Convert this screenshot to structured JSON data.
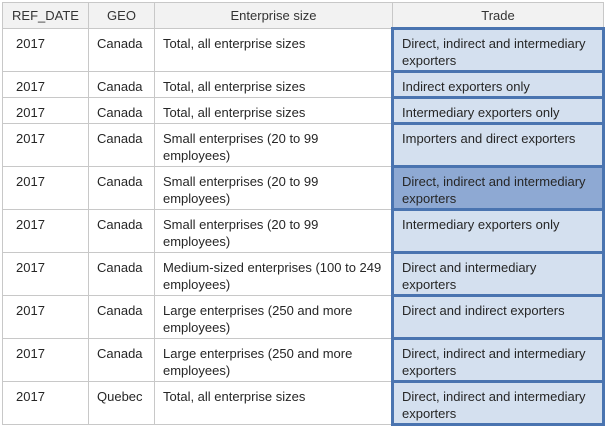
{
  "columns": {
    "ref_date": "REF_DATE",
    "geo": "GEO",
    "size": "Enterprise size",
    "trade": "Trade"
  },
  "rows": [
    {
      "ref_date": "2017",
      "geo": "Canada",
      "size": "Total, all enterprise sizes",
      "trade": "Direct, indirect and intermediary exporters"
    },
    {
      "ref_date": "2017",
      "geo": "Canada",
      "size": "Total, all enterprise sizes",
      "trade": "Indirect exporters only"
    },
    {
      "ref_date": "2017",
      "geo": "Canada",
      "size": "Total, all enterprise sizes",
      "trade": "Intermediary exporters only"
    },
    {
      "ref_date": "2017",
      "geo": "Canada",
      "size": "Small enterprises (20 to 99 employees)",
      "trade": "Importers and direct exporters"
    },
    {
      "ref_date": "2017",
      "geo": "Canada",
      "size": "Small enterprises (20 to 99 employees)",
      "trade": "Direct, indirect and intermediary exporters"
    },
    {
      "ref_date": "2017",
      "geo": "Canada",
      "size": "Small enterprises (20 to 99 employees)",
      "trade": "Intermediary exporters only"
    },
    {
      "ref_date": "2017",
      "geo": "Canada",
      "size": "Medium-sized enterprises (100 to 249 employees)",
      "trade": "Direct and intermediary exporters"
    },
    {
      "ref_date": "2017",
      "geo": "Canada",
      "size": "Large enterprises (250 and more employees)",
      "trade": "Direct and indirect exporters"
    },
    {
      "ref_date": "2017",
      "geo": "Canada",
      "size": "Large enterprises (250 and more employees)",
      "trade": "Direct, indirect and intermediary exporters"
    },
    {
      "ref_date": "2017",
      "geo": "Quebec",
      "size": "Total, all enterprise sizes",
      "trade": "Direct, indirect and intermediary exporters"
    }
  ],
  "selected_row_index": 4,
  "colors": {
    "trade_fill": "#d4e0ef",
    "trade_selected_fill": "#8ea9d3",
    "trade_border": "#4a74b0",
    "grid": "#c8c8c8"
  }
}
